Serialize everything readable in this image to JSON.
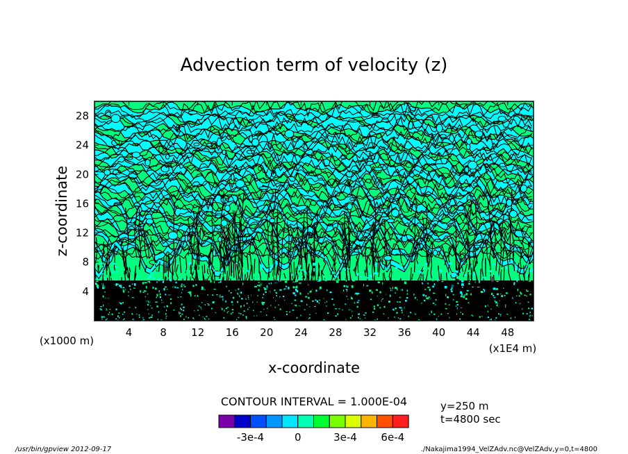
{
  "chart_data": {
    "type": "heatmap",
    "title": "Advection term of velocity (z)",
    "xlabel": "x-coordinate",
    "ylabel": "z-coordinate",
    "x_unit": "(x1E4 m)",
    "y_unit": "(x1000 m)",
    "x_ticks": [
      "4",
      "8",
      "12",
      "16",
      "20",
      "24",
      "28",
      "32",
      "36",
      "40",
      "44",
      "48"
    ],
    "y_ticks": [
      "4",
      "8",
      "12",
      "16",
      "20",
      "24",
      "28"
    ],
    "xlim": [
      0,
      51
    ],
    "ylim": [
      0,
      30
    ],
    "contour_interval_label": "CONTOUR INTERVAL = 1.000E-04",
    "meta_lines": [
      "y=250 m",
      "t=4800 sec"
    ],
    "colorbar": {
      "colors": [
        "#7a00aa",
        "#0000cc",
        "#0050ff",
        "#0096ff",
        "#00e6ff",
        "#00ffb4",
        "#00ff32",
        "#78ff00",
        "#dcff00",
        "#ffb400",
        "#ff5000",
        "#ff1e1e"
      ],
      "labels": [
        "-3e-4",
        "0",
        "3e-4",
        "6e-4"
      ],
      "label_levels": [
        -0.0003,
        0,
        0.0003,
        0.0006
      ],
      "min": -0.0005,
      "max": 0.0007
    },
    "colors": {
      "background_field": "#00ff80",
      "negative_band": "#00ffff",
      "contour_line": "#000000"
    },
    "footer_left": "/usr/bin/gpview  2012-09-17",
    "footer_right": "./Nakajima1994_VelZAdv.nc@VelZAdv,y=0,t=4800"
  }
}
